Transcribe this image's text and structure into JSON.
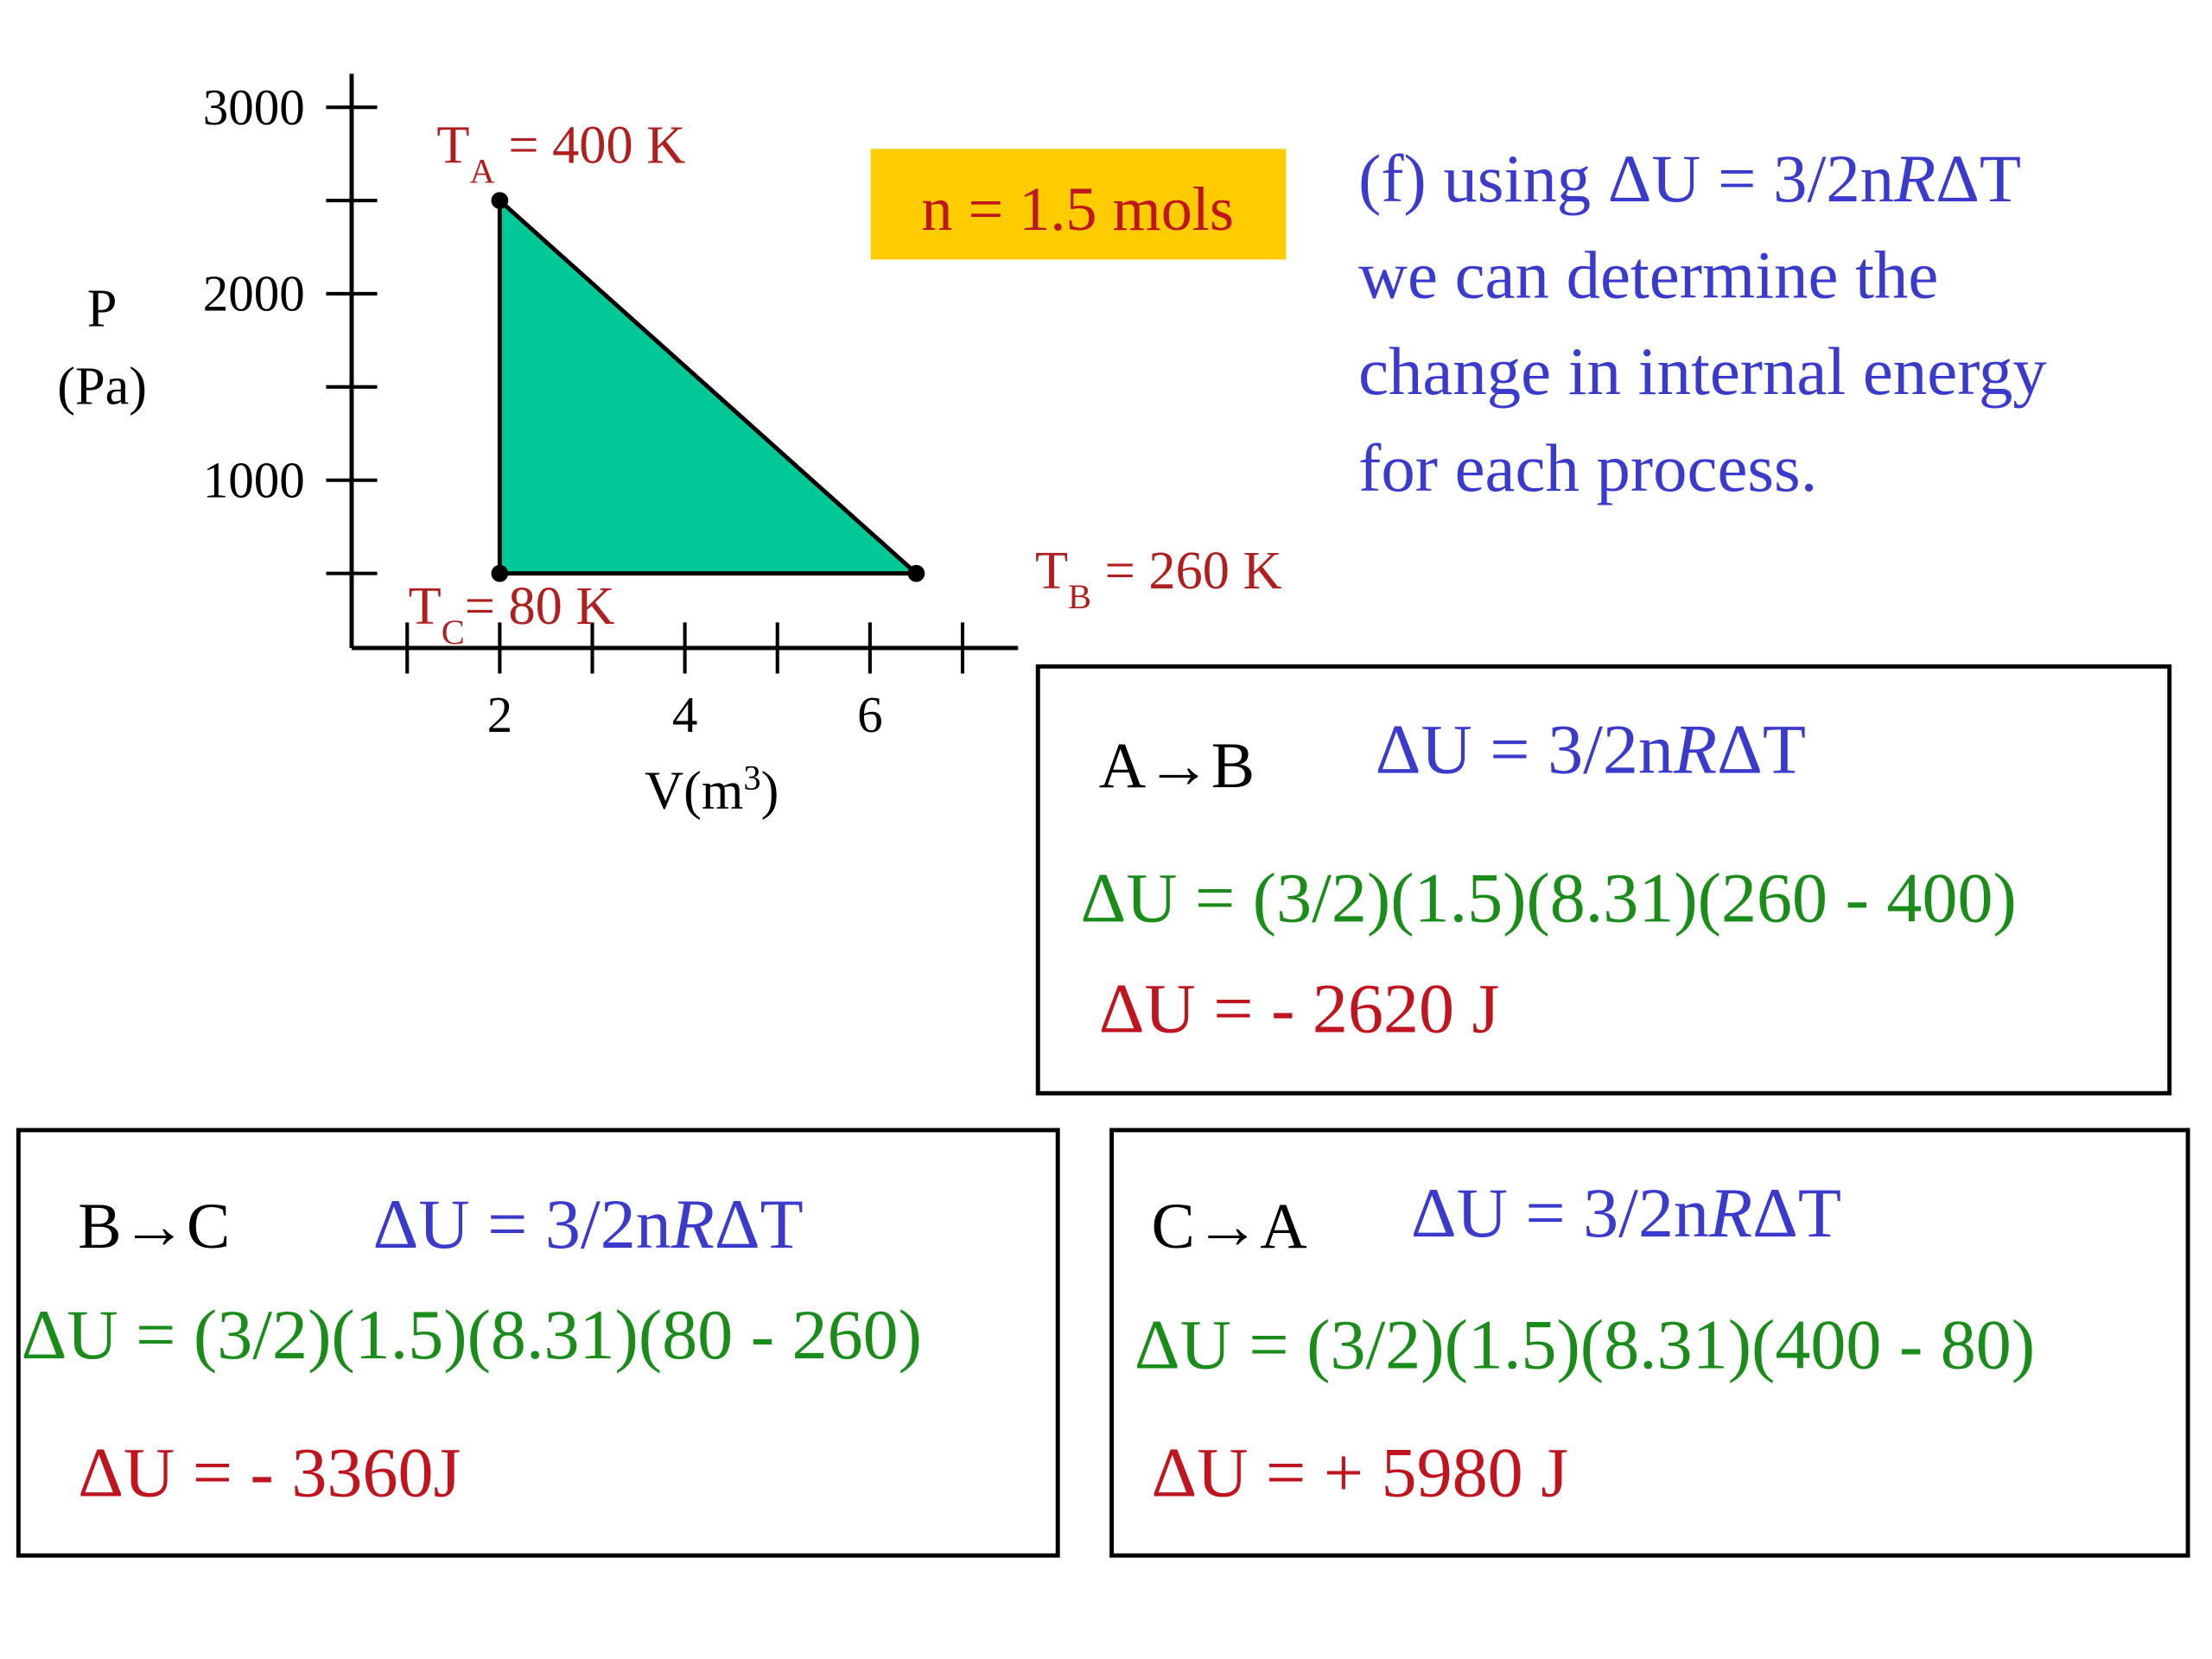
{
  "chart_data": {
    "type": "area",
    "x": [
      2,
      6.5,
      2
    ],
    "values": [
      2500,
      500,
      500
    ],
    "color": "#00c896",
    "xlim": [
      0.4,
      7.6
    ],
    "ylim": [
      100,
      3180
    ],
    "xticks": [
      2,
      4,
      6
    ],
    "xminorticks": [
      1,
      3,
      5,
      7
    ],
    "yticks": [
      1000,
      2000,
      3000
    ],
    "yminorticks": [
      500,
      1500,
      2500
    ],
    "ylabel": [
      "P",
      "(Pa)"
    ],
    "xlabel": [
      "V(m",
      {
        "text": "3",
        "style": "sup"
      },
      ")"
    ],
    "point_labels": [
      [
        "T",
        {
          "text": "A",
          "style": "sub"
        },
        " = 400 K"
      ],
      [
        "T",
        {
          "text": "B",
          "style": "sub"
        },
        " = 260 K"
      ],
      [
        "T",
        {
          "text": "C",
          "style": "sub"
        },
        "= 80 K"
      ]
    ]
  },
  "note": "n = 1.5 mols",
  "intro": [
    [
      "(f) using ΔU = 3/2n",
      {
        "text": "R",
        "style": "italic"
      },
      "ΔT"
    ],
    [
      "we can determine the"
    ],
    [
      "change in internal energy"
    ],
    [
      "for each process."
    ]
  ],
  "boxes": [
    {
      "title": [
        "A→B"
      ],
      "formula": [
        "ΔU = 3/2n",
        {
          "text": "R",
          "style": "italic"
        },
        "ΔT"
      ],
      "calc": [
        "ΔU = (3/2)(1.5)(8.31)(260 - 400)"
      ],
      "result": [
        "ΔU = - 2620 J"
      ]
    },
    {
      "title": [
        "B→C"
      ],
      "formula": [
        "ΔU = 3/2n",
        {
          "text": "R",
          "style": "italic"
        },
        "ΔT"
      ],
      "calc": [
        "ΔU = (3/2)(1.5)(8.31)(80 - 260)"
      ],
      "result": [
        "ΔU = - 3360J"
      ]
    },
    {
      "title": [
        "C→A"
      ],
      "formula": [
        "ΔU = 3/2n",
        {
          "text": "R",
          "style": "italic"
        },
        "ΔT"
      ],
      "calc": [
        "ΔU = (3/2)(1.5)(8.31)(400 - 80)"
      ],
      "result": [
        "ΔU = + 5980 J"
      ]
    }
  ]
}
